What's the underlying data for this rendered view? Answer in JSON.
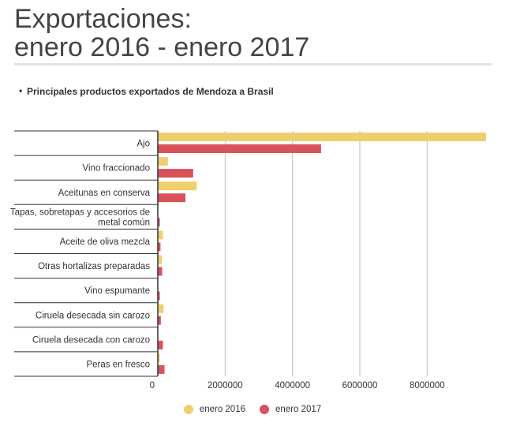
{
  "header": {
    "title_line1": "Exportaciones:",
    "title_line2": "enero 2016 - enero 2017"
  },
  "chart_data": {
    "type": "bar",
    "orientation": "horizontal",
    "title": "Principales productos exportados de Mendoza a Brasil",
    "categories": [
      [
        "Ajo"
      ],
      [
        "Vino fraccionado"
      ],
      [
        "Aceitunas en conserva"
      ],
      [
        "Tapas, sobretapas y accesorios de",
        "metal común"
      ],
      [
        "Aceite de oliva mezcla"
      ],
      [
        "Otras hortalizas preparadas"
      ],
      [
        "Vino espumante"
      ],
      [
        "Ciruela desecada sin carozo"
      ],
      [
        "Ciruela desecada con carozo"
      ],
      [
        "Peras en fresco"
      ]
    ],
    "series": [
      {
        "name": "enero 2016",
        "color": "#f0ce6f",
        "values": [
          9750000,
          300000,
          1150000,
          0,
          150000,
          120000,
          0,
          170000,
          0,
          60000
        ]
      },
      {
        "name": "enero 2017",
        "color": "#d9525a",
        "values": [
          4850000,
          1050000,
          820000,
          60000,
          80000,
          130000,
          60000,
          90000,
          150000,
          200000
        ]
      }
    ],
    "xlim": [
      0,
      9750000
    ],
    "xticks": [
      0,
      2000000,
      4000000,
      6000000,
      8000000
    ],
    "xtick_labels": [
      "0",
      "2000000",
      "4000000",
      "6000000",
      "8000000"
    ],
    "grid": true,
    "legend_position": "bottom"
  }
}
